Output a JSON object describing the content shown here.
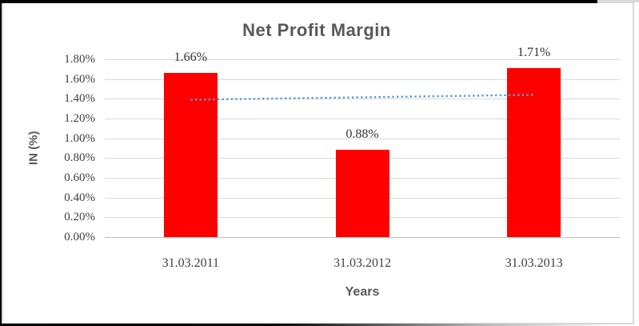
{
  "chart_data": {
    "type": "bar",
    "title": "Net Profit Margin",
    "xlabel": "Years",
    "ylabel": "IN (%)",
    "categories": [
      "31.03.2011",
      "31.03.2012",
      "31.03.2013"
    ],
    "values": [
      1.66,
      0.88,
      1.71
    ],
    "data_labels": [
      "1.66%",
      "0.88%",
      "1.71%"
    ],
    "ylim": [
      0,
      1.8
    ],
    "ytick_step": 0.2,
    "ytick_labels": [
      "0.00%",
      "0.20%",
      "0.40%",
      "0.60%",
      "0.80%",
      "1.00%",
      "1.20%",
      "1.40%",
      "1.60%",
      "1.80%"
    ],
    "grid": true,
    "legend": "none",
    "bar_color": "#ff0000",
    "gridline_color": "#d9d9d9",
    "title_color": "#595959",
    "tick_color": "#404040",
    "trendline": {
      "type": "linear",
      "style": "dotted",
      "color": "#5b9bd5",
      "start_value": 1.39,
      "end_value": 1.44
    }
  }
}
